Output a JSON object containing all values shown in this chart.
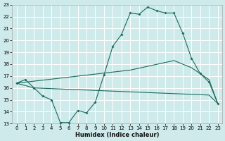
{
  "xlabel": "Humidex (Indice chaleur)",
  "bg_color": "#ceeaea",
  "grid_color": "#ffffff",
  "line_color": "#1a6b5e",
  "xlim": [
    -0.5,
    23.5
  ],
  "ylim": [
    13,
    23
  ],
  "xticks": [
    0,
    1,
    2,
    3,
    4,
    5,
    6,
    7,
    8,
    9,
    10,
    11,
    12,
    13,
    14,
    15,
    16,
    17,
    18,
    19,
    20,
    21,
    22,
    23
  ],
  "yticks": [
    13,
    14,
    15,
    16,
    17,
    18,
    19,
    20,
    21,
    22,
    23
  ],
  "line1_x": [
    0,
    1,
    2,
    3,
    4,
    5,
    6,
    7,
    8,
    9,
    10,
    11,
    12,
    13,
    14,
    15,
    16,
    17,
    18,
    19,
    20,
    21,
    22,
    23
  ],
  "line1_y": [
    16.4,
    16.7,
    16.0,
    15.3,
    15.0,
    13.1,
    13.1,
    14.1,
    13.9,
    14.8,
    17.1,
    19.5,
    20.5,
    22.3,
    22.2,
    22.8,
    22.5,
    22.3,
    22.3,
    20.6,
    18.5,
    17.2,
    16.5,
    14.7
  ],
  "line2_x": [
    0,
    2,
    22,
    23
  ],
  "line2_y": [
    16.4,
    16.0,
    15.4,
    14.7
  ],
  "line3_x": [
    0,
    13,
    18,
    20,
    21,
    22,
    23
  ],
  "line3_y": [
    16.4,
    17.5,
    18.3,
    17.7,
    17.2,
    16.7,
    14.7
  ]
}
